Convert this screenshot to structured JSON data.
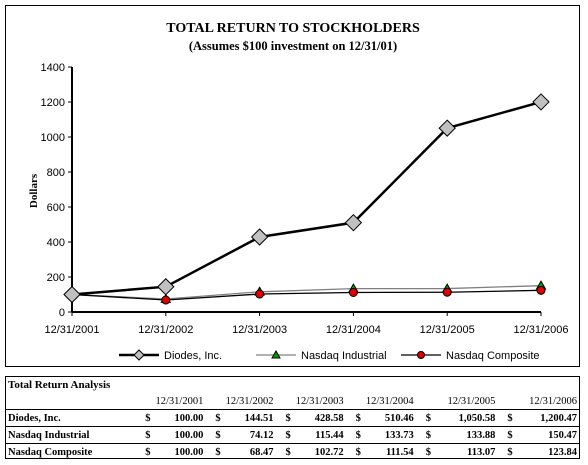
{
  "chart_data": {
    "type": "line",
    "title": "TOTAL RETURN TO STOCKHOLDERS",
    "subtitle": "(Assumes $100 investment on 12/31/01)",
    "xlabel": "",
    "ylabel": "Dollars",
    "ylim": [
      0,
      1400
    ],
    "yticks": [
      0,
      200,
      400,
      600,
      800,
      1000,
      1200,
      1400
    ],
    "categories": [
      "12/31/2001",
      "12/31/2002",
      "12/31/2003",
      "12/31/2004",
      "12/31/2005",
      "12/31/2006"
    ],
    "series": [
      {
        "name": "Diodes, Inc.",
        "values": [
          100.0,
          144.51,
          428.58,
          510.46,
          1050.58,
          1200.47
        ],
        "marker": "diamond",
        "color": "#000000",
        "fill": "#c0c0c0"
      },
      {
        "name": "Nasdaq Industrial",
        "values": [
          100.0,
          74.12,
          115.44,
          133.73,
          133.88,
          150.47
        ],
        "marker": "triangle",
        "color": "#808080",
        "fill": "#00a000"
      },
      {
        "name": "Nasdaq Composite",
        "values": [
          100.0,
          68.47,
          102.72,
          111.54,
          113.07,
          123.84
        ],
        "marker": "circle",
        "color": "#000000",
        "fill": "#e00000"
      }
    ],
    "grid": false,
    "legend": "bottom"
  },
  "table": {
    "title": "Total Return Analysis",
    "dollar_sign": "$",
    "headers": [
      "12/31/2001",
      "12/31/2002",
      "12/31/2003",
      "12/31/2004",
      "12/31/2005",
      "12/31/2006"
    ],
    "rows": [
      {
        "name": "Diodes, Inc.",
        "values": [
          "100.00",
          "144.51",
          "428.58",
          "510.46",
          "1,050.58",
          "1,200.47"
        ]
      },
      {
        "name": "Nasdaq Industrial",
        "values": [
          "100.00",
          "74.12",
          "115.44",
          "133.73",
          "133.88",
          "150.47"
        ]
      },
      {
        "name": "Nasdaq Composite",
        "values": [
          "100.00",
          "68.47",
          "102.72",
          "111.54",
          "113.07",
          "123.84"
        ]
      }
    ]
  }
}
